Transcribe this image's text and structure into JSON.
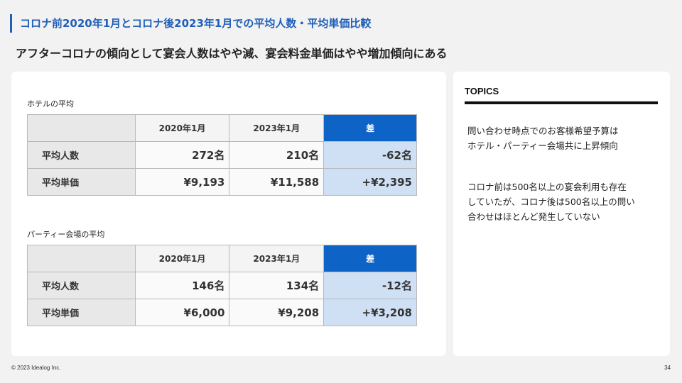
{
  "header": {
    "title": "コロナ前2020年1月とコロナ後2023年1月での平均人数・平均単価比較",
    "subtitle": "アフターコロナの傾向として宴会人数はやや減、宴会料金単価はやや増加傾向にある"
  },
  "tables": [
    {
      "title": "ホテルの平均",
      "columns": [
        "",
        "2020年1月",
        "2023年1月",
        "差"
      ],
      "rows": [
        {
          "label": "平均人数",
          "v2020": "272名",
          "v2023": "210名",
          "diff": "-62名"
        },
        {
          "label": "平均単価",
          "v2020": "¥9,193",
          "v2023": "¥11,588",
          "diff": "+¥2,395"
        }
      ]
    },
    {
      "title": "パーティー会場の平均",
      "columns": [
        "",
        "2020年1月",
        "2023年1月",
        "差"
      ],
      "rows": [
        {
          "label": "平均人数",
          "v2020": "146名",
          "v2023": "134名",
          "diff": "-12名"
        },
        {
          "label": "平均単価",
          "v2020": "¥6,000",
          "v2023": "¥9,208",
          "diff": "+¥3,208"
        }
      ]
    }
  ],
  "topics": {
    "title": "TOPICS",
    "items": [
      "問い合わせ時点でのお客様希望予算は\nホテル・パーティー会場共に上昇傾向",
      "コロナ前は500名以上の宴会利用も存在\nしていたが、コロナ後は500名以上の問い\n合わせはほとんど発生していない"
    ]
  },
  "footer": {
    "copyright": "© 2023 Idealog Inc.",
    "page": "34"
  },
  "colors": {
    "accent": "#1f5fb8",
    "diff_header": "#0e63c7",
    "diff_cell": "#cfe0f5"
  }
}
